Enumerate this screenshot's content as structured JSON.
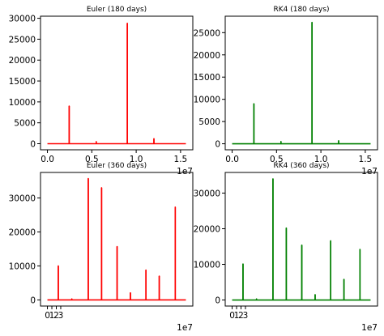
{
  "chart_data": [
    {
      "type": "line",
      "title": "Euler (180 days)",
      "color": "#ff0000",
      "x_offset_label": "1e7",
      "xlim": [
        -0.078,
        1.638
      ],
      "ylim": [
        -1450,
        30500
      ],
      "xticks": [
        0.0,
        0.5,
        1.0,
        1.5
      ],
      "xtick_labels": [
        "0.0",
        "0.5",
        "1.0",
        "1.5"
      ],
      "yticks": [
        0,
        5000,
        10000,
        15000,
        20000,
        25000,
        30000
      ],
      "ytick_labels": [
        "0",
        "5000",
        "10000",
        "15000",
        "20000",
        "25000",
        "30000"
      ],
      "x_end": 1.56,
      "baseline": 0,
      "spikes": [
        {
          "x": 0.245,
          "y": 9000
        },
        {
          "x": 0.55,
          "y": 500
        },
        {
          "x": 0.9,
          "y": 28800
        },
        {
          "x": 1.2,
          "y": 1200
        }
      ]
    },
    {
      "type": "line",
      "title": "RK4  (180 days)",
      "color": "#008000",
      "x_offset_label": "1e7",
      "xlim": [
        -0.078,
        1.638
      ],
      "ylim": [
        -1350,
        28700
      ],
      "xticks": [
        0.0,
        0.5,
        1.0,
        1.5
      ],
      "xtick_labels": [
        "0.0",
        "0.5",
        "1.0",
        "1.5"
      ],
      "yticks": [
        0,
        5000,
        10000,
        15000,
        20000,
        25000
      ],
      "ytick_labels": [
        "0",
        "5000",
        "10000",
        "15000",
        "20000",
        "25000"
      ],
      "x_end": 1.56,
      "baseline": 0,
      "spikes": [
        {
          "x": 0.245,
          "y": 9000
        },
        {
          "x": 0.55,
          "y": 500
        },
        {
          "x": 0.9,
          "y": 27300
        },
        {
          "x": 1.2,
          "y": 700
        }
      ]
    },
    {
      "type": "line",
      "title": "Euler (360 days)",
      "color": "#ff0000",
      "x_offset_label": "1e7",
      "xlim": [
        -1.56,
        32.76
      ],
      "ylim": [
        -1800,
        37500
      ],
      "xticks": [
        0,
        1,
        2,
        3
      ],
      "xtick_labels": [
        "0",
        "1",
        "2",
        "3"
      ],
      "yticks": [
        0,
        10000,
        20000,
        30000
      ],
      "ytick_labels": [
        "0",
        "10000",
        "20000",
        "30000"
      ],
      "x_end": 31.2,
      "baseline": 0,
      "spikes": [
        {
          "x": 2.45,
          "y": 10000
        },
        {
          "x": 5.5,
          "y": 300
        },
        {
          "x": 9.2,
          "y": 35700
        },
        {
          "x": 12.2,
          "y": 33000
        },
        {
          "x": 15.7,
          "y": 15700
        },
        {
          "x": 18.7,
          "y": 2100
        },
        {
          "x": 22.2,
          "y": 8800
        },
        {
          "x": 25.2,
          "y": 7000
        },
        {
          "x": 28.8,
          "y": 27300
        }
      ]
    },
    {
      "type": "line",
      "title": "RK4 (360 days)",
      "color": "#008000",
      "x_offset_label": "1e7",
      "xlim": [
        -1.56,
        32.76
      ],
      "ylim": [
        -1700,
        35800
      ],
      "xticks": [
        0,
        1,
        2,
        3
      ],
      "xtick_labels": [
        "0",
        "1",
        "2",
        "3"
      ],
      "yticks": [
        0,
        10000,
        20000,
        30000
      ],
      "ytick_labels": [
        "0",
        "10000",
        "20000",
        "30000"
      ],
      "x_end": 31.2,
      "baseline": 0,
      "spikes": [
        {
          "x": 2.45,
          "y": 10100
        },
        {
          "x": 5.5,
          "y": 300
        },
        {
          "x": 9.2,
          "y": 34000
        },
        {
          "x": 12.2,
          "y": 20200
        },
        {
          "x": 15.7,
          "y": 15400
        },
        {
          "x": 18.7,
          "y": 1500
        },
        {
          "x": 22.2,
          "y": 16600
        },
        {
          "x": 25.2,
          "y": 5800
        },
        {
          "x": 28.8,
          "y": 14200
        }
      ]
    }
  ]
}
